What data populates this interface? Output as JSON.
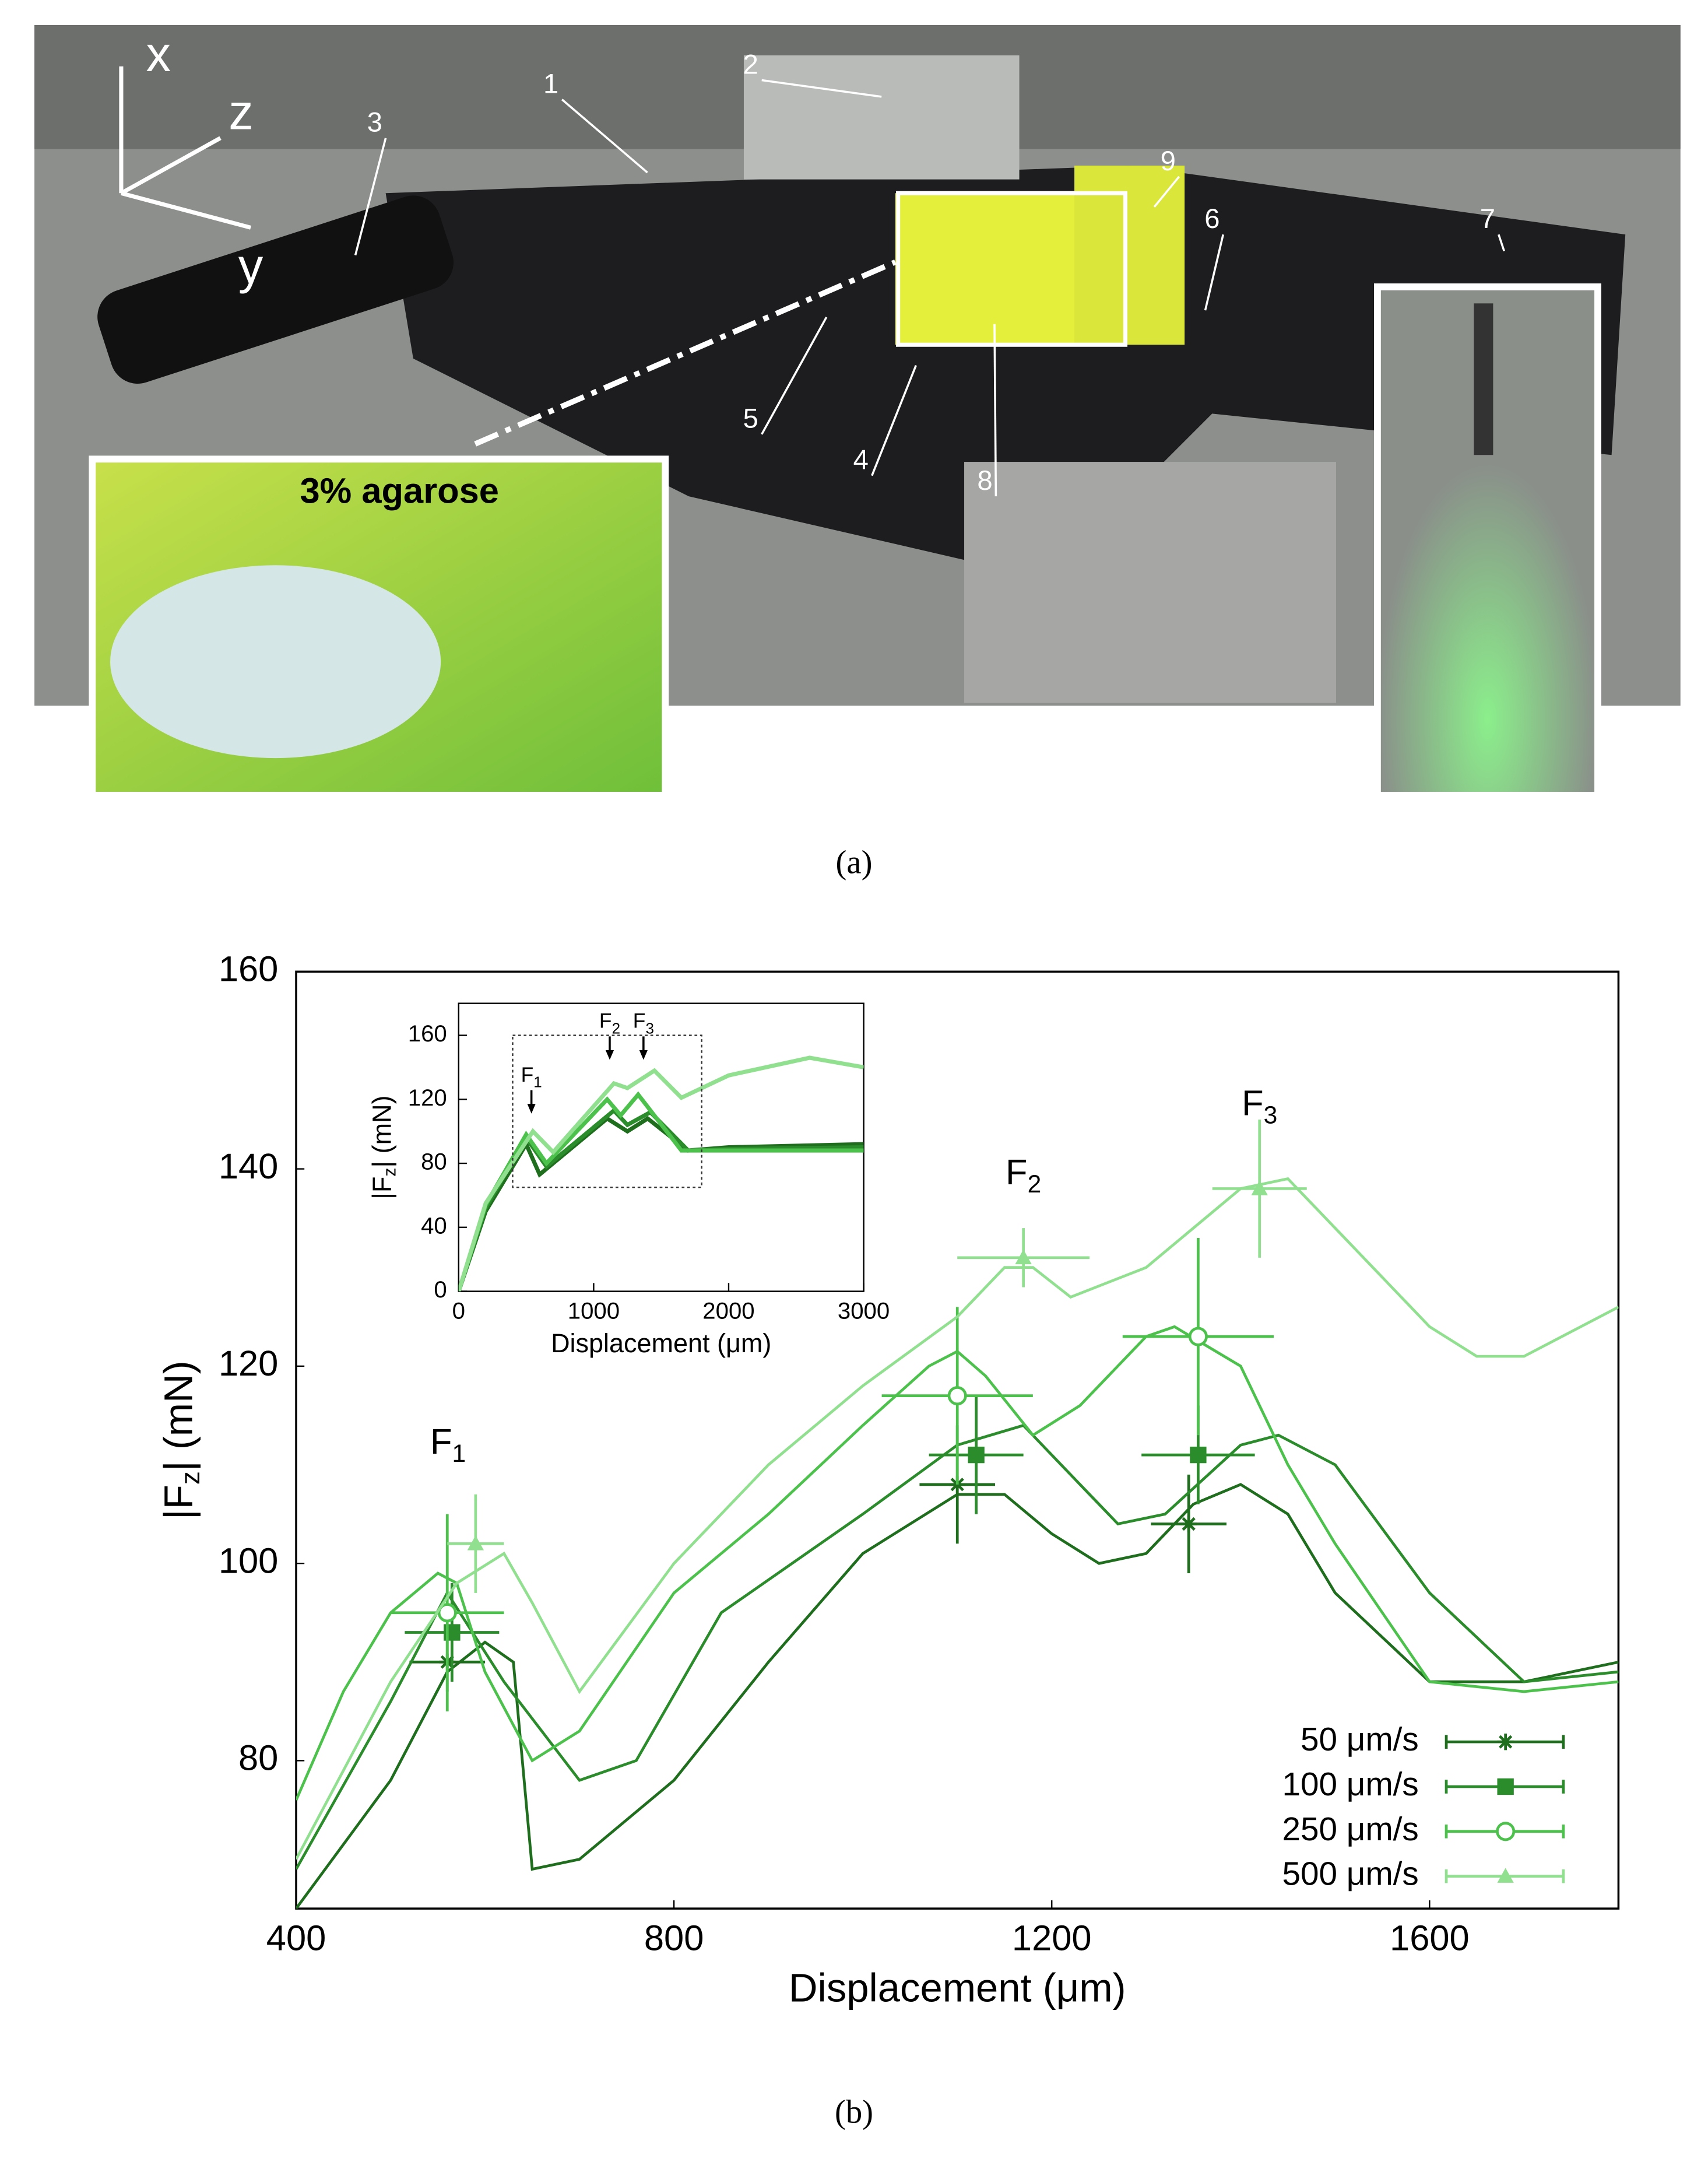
{
  "photo": {
    "axes": [
      "x",
      "z",
      "y"
    ],
    "callouts": [
      "1",
      "2",
      "3",
      "4",
      "5",
      "6",
      "7",
      "8",
      "9"
    ],
    "inset_label": "3% agarose"
  },
  "captions": [
    "(a)",
    "(b)"
  ],
  "chart_data": [
    {
      "type": "line",
      "xlabel": "Displacement (μm)",
      "ylabel_parts": [
        "|F",
        "z",
        "| (mN)"
      ],
      "xlim": [
        400,
        1800
      ],
      "ylim": [
        65,
        160
      ],
      "xticks": [
        400,
        800,
        1200,
        1600
      ],
      "yticks": [
        80,
        100,
        120,
        140,
        160
      ],
      "annotations": [
        {
          "text": "F",
          "sub": "1"
        },
        {
          "text": "F",
          "sub": "2"
        },
        {
          "text": "F",
          "sub": "3"
        }
      ],
      "legend": "lower right",
      "series": [
        {
          "name": "50 μm/s",
          "color": "#1e6e1e",
          "marker": "star",
          "x": [
            400,
            500,
            560,
            600,
            630,
            650,
            700,
            800,
            900,
            1000,
            1100,
            1150,
            1200,
            1250,
            1300,
            1350,
            1400,
            1450,
            1500,
            1600,
            1700,
            1800
          ],
          "values": [
            65,
            78,
            89,
            92,
            90,
            69,
            70,
            78,
            90,
            101,
            107,
            107,
            103,
            100,
            101,
            106,
            108,
            105,
            97,
            88,
            88,
            90
          ],
          "points": {
            "x": [
              560,
              1100,
              1345
            ],
            "values": [
              90,
              108,
              104
            ],
            "xerr": [
              40,
              40,
              40
            ],
            "yerr": [
              3,
              6,
              5
            ]
          }
        },
        {
          "name": "100 μm/s",
          "color": "#2a8c2a",
          "marker": "square",
          "x": [
            400,
            500,
            560,
            620,
            700,
            760,
            850,
            1000,
            1100,
            1170,
            1230,
            1270,
            1320,
            1400,
            1440,
            1500,
            1600,
            1700,
            1800
          ],
          "values": [
            69,
            86,
            97,
            88,
            78,
            80,
            95,
            105,
            112,
            114,
            108,
            104,
            105,
            112,
            113,
            110,
            97,
            88,
            89
          ],
          "points": {
            "x": [
              565,
              1120,
              1355
            ],
            "values": [
              93,
              111,
              111
            ],
            "xerr": [
              50,
              50,
              60
            ],
            "yerr": [
              5,
              6,
              5
            ]
          }
        },
        {
          "name": "250 μm/s",
          "color": "#4cc24c",
          "marker": "circle",
          "x": [
            400,
            450,
            500,
            550,
            570,
            600,
            650,
            700,
            800,
            900,
            1000,
            1070,
            1100,
            1130,
            1180,
            1230,
            1300,
            1330,
            1400,
            1450,
            1500,
            1600,
            1700,
            1800
          ],
          "values": [
            76,
            87,
            95,
            99,
            98,
            89,
            80,
            83,
            97,
            105,
            114,
            120,
            121.5,
            119,
            113,
            116,
            123,
            124,
            120,
            110,
            102,
            88,
            87,
            88
          ],
          "points": {
            "x": [
              560,
              1100,
              1355
            ],
            "values": [
              95,
              117,
              123
            ],
            "xerr": [
              60,
              80,
              80
            ],
            "yerr": [
              10,
              9,
              10
            ]
          }
        },
        {
          "name": "500 μm/s",
          "color": "#90e090",
          "marker": "triangle",
          "x": [
            400,
            500,
            570,
            620,
            650,
            700,
            800,
            900,
            1000,
            1100,
            1150,
            1180,
            1220,
            1300,
            1400,
            1450,
            1500,
            1600,
            1650,
            1700,
            1800
          ],
          "values": [
            70,
            88,
            98,
            101,
            96,
            87,
            100,
            110,
            118,
            125,
            130,
            130,
            127,
            130,
            138,
            139,
            134,
            124,
            121,
            121,
            126
          ],
          "points": {
            "x": [
              590,
              1170,
              1420
            ],
            "values": [
              102,
              131,
              138
            ],
            "xerr": [
              30,
              70,
              50
            ],
            "yerr": [
              5,
              3,
              7
            ]
          }
        }
      ]
    },
    {
      "type": "line",
      "xlabel": "Displacement (μm)",
      "ylabel_parts": [
        "|F",
        "z",
        "| (mN)"
      ],
      "xlim": [
        0,
        3000
      ],
      "ylim": [
        0,
        180
      ],
      "xticks": [
        0,
        1000,
        2000,
        3000
      ],
      "yticks": [
        0,
        40,
        80,
        120,
        160
      ],
      "annotations": [
        {
          "text": "F",
          "sub": "1"
        },
        {
          "text": "F",
          "sub": "2"
        },
        {
          "text": "F",
          "sub": "3"
        }
      ],
      "series": [
        {
          "color": "#1e6e1e",
          "x": [
            0,
            200,
            500,
            600,
            1100,
            1250,
            1400,
            1700,
            2000,
            3000
          ],
          "values": [
            0,
            50,
            92,
            73,
            108,
            100,
            108,
            88,
            90,
            92
          ]
        },
        {
          "color": "#2a8c2a",
          "x": [
            0,
            200,
            500,
            650,
            1150,
            1250,
            1420,
            1700,
            2000,
            3000
          ],
          "values": [
            0,
            52,
            96,
            78,
            113,
            104,
            112,
            88,
            89,
            90
          ]
        },
        {
          "color": "#4cc24c",
          "x": [
            0,
            200,
            500,
            650,
            1100,
            1200,
            1330,
            1650,
            2000,
            3000
          ],
          "values": [
            0,
            54,
            98,
            80,
            120,
            110,
            123,
            88,
            88,
            88
          ]
        },
        {
          "color": "#90e090",
          "x": [
            0,
            200,
            550,
            700,
            1150,
            1250,
            1450,
            1650,
            2000,
            2600,
            3000
          ],
          "values": [
            0,
            55,
            100,
            87,
            130,
            127,
            138,
            121,
            135,
            146,
            140
          ]
        }
      ]
    }
  ]
}
